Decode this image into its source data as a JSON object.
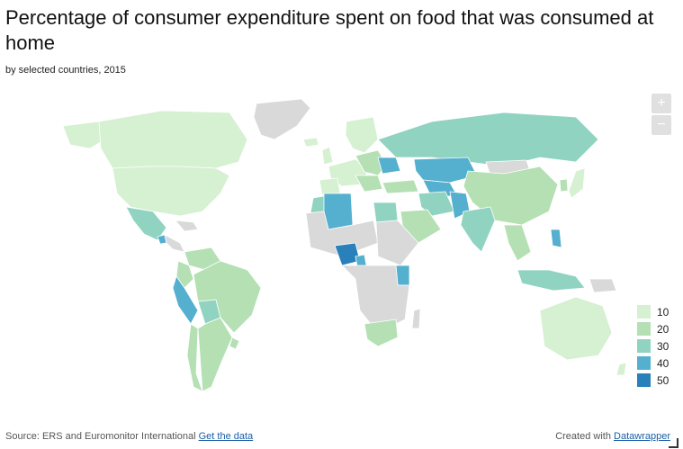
{
  "header": {
    "title": "Percentage of consumer expenditure spent on food that was consumed at home",
    "subtitle": "by selected countries, 2015"
  },
  "zoom": {
    "in_label": "+",
    "out_label": "−"
  },
  "legend": {
    "items": [
      {
        "label": "10",
        "color": "#d6f0d2"
      },
      {
        "label": "20",
        "color": "#b4e0b4"
      },
      {
        "label": "30",
        "color": "#8fd3c0"
      },
      {
        "label": "40",
        "color": "#55afcf"
      },
      {
        "label": "50",
        "color": "#2a80bb"
      }
    ],
    "no_data_color": "#d9d9d9"
  },
  "footer": {
    "source_prefix": "Source: ERS and Euromonitor International",
    "get_data_link": "Get the data",
    "created_prefix": "Created with",
    "created_link": "Datawrapper"
  }
}
